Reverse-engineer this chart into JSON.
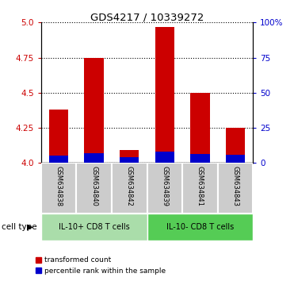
{
  "title": "GDS4217 / 10339272",
  "samples": [
    "GSM634838",
    "GSM634840",
    "GSM634842",
    "GSM634839",
    "GSM634841",
    "GSM634843"
  ],
  "red_tops": [
    4.38,
    4.75,
    4.09,
    4.97,
    4.5,
    4.25
  ],
  "blue_tops": [
    4.055,
    4.07,
    4.04,
    4.08,
    4.065,
    4.06
  ],
  "bar_base": 4.0,
  "ylim": [
    4.0,
    5.0
  ],
  "yticks_left": [
    4.0,
    4.25,
    4.5,
    4.75,
    5.0
  ],
  "yticks_right": [
    0,
    25,
    50,
    75,
    100
  ],
  "yticks_right_labels": [
    "0",
    "25",
    "50",
    "75",
    "100%"
  ],
  "left_color": "#cc0000",
  "right_color": "#0000cc",
  "group1_label": "IL-10+ CD8 T cells",
  "group2_label": "IL-10- CD8 T cells",
  "group1_color": "#aaddaa",
  "group2_color": "#55cc55",
  "cell_type_label": "cell type",
  "legend_red_label": "transformed count",
  "legend_blue_label": "percentile rank within the sample",
  "bar_width": 0.55,
  "red_color": "#cc0000",
  "blue_color": "#0000cc",
  "sample_box_color": "#cccccc"
}
